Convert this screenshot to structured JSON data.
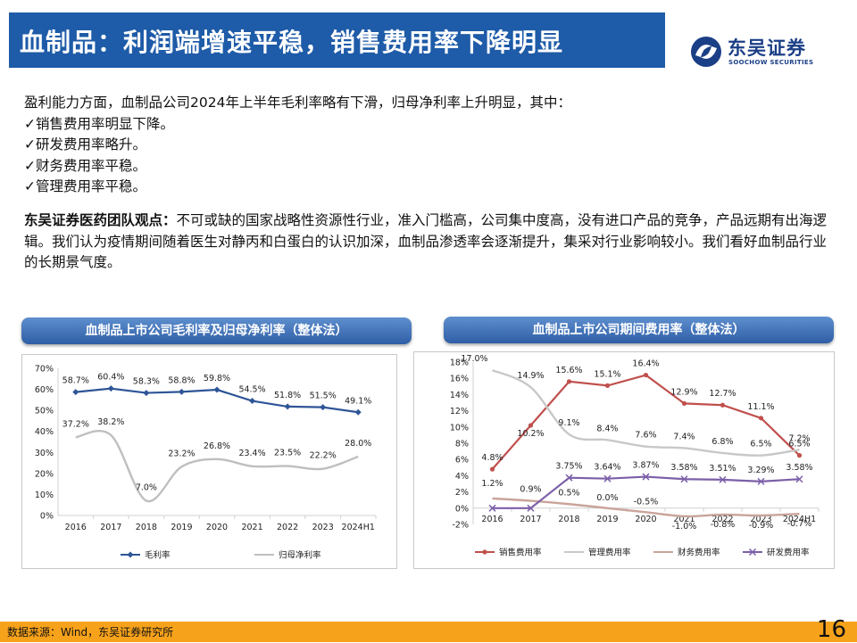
{
  "header": {
    "title": "血制品：利润端增速平稳，销售费用率下降明显"
  },
  "logo": {
    "cn": "东吴证券",
    "en": "SOOCHOW SECURITIES"
  },
  "intro": {
    "lead": "盈利能力方面，血制品公司2024年上半年毛利率略有下滑，归母净利率上升明显，其中：",
    "points": [
      "✓销售费用率明显下降。",
      "✓研发费用率略升。",
      "✓财务费用率平稳。",
      "✓管理费用率平稳。"
    ]
  },
  "viewpoint": {
    "heading": "东吴证券医药团队观点：",
    "body": "不可或缺的国家战略性资源性行业，准入门槛高，公司集中度高，没有进口产品的竞争，产品远期有出海逻辑。我们认为疫情期间随着医生对静丙和白蛋白的认识加深，血制品渗透率会逐渐提升，集采对行业影响较小。我们看好血制品行业的长期景气度。"
  },
  "chart_data": [
    {
      "type": "line",
      "title": "血制品上市公司毛利率及归母净利率（整体法）",
      "categories": [
        "2016",
        "2017",
        "2018",
        "2019",
        "2020",
        "2021",
        "2022",
        "2023",
        "2024H1"
      ],
      "ylim": [
        0,
        70
      ],
      "yticks": [
        "0%",
        "10%",
        "20%",
        "30%",
        "40%",
        "50%",
        "60%",
        "70%"
      ],
      "legend_position": "bottom",
      "series": [
        {
          "name": "毛利率",
          "color": "#2e5597",
          "marker": "diamond",
          "smooth": false,
          "values": [
            58.7,
            60.4,
            58.3,
            58.8,
            59.8,
            54.5,
            51.8,
            51.5,
            49.1
          ],
          "labels": [
            "58.7%",
            "60.4%",
            "58.3%",
            "58.8%",
            "59.8%",
            "54.5%",
            "51.8%",
            "51.5%",
            "49.1%"
          ]
        },
        {
          "name": "归母净利率",
          "color": "#bfbfbf",
          "marker": "none",
          "smooth": true,
          "values": [
            37.2,
            38.2,
            7.0,
            23.2,
            26.8,
            23.4,
            23.5,
            22.2,
            28.0
          ],
          "labels": [
            "37.2%",
            "38.2%",
            "7.0%",
            "23.2%",
            "26.8%",
            "23.4%",
            "23.5%",
            "22.2%",
            "28.0%"
          ]
        }
      ]
    },
    {
      "type": "line",
      "title": "血制品上市公司期间费用率（整体法）",
      "categories": [
        "2016",
        "2017",
        "2018",
        "2019",
        "2020",
        "2021",
        "2022",
        "2023",
        "2024H1"
      ],
      "ylim": [
        -2,
        18
      ],
      "yticks": [
        "-2%",
        "0%",
        "2%",
        "4%",
        "6%",
        "8%",
        "10%",
        "12%",
        "14%",
        "16%",
        "18%"
      ],
      "legend_position": "bottom",
      "series": [
        {
          "name": "销售费用率",
          "color": "#c0504d",
          "marker": "dot",
          "smooth": false,
          "values": [
            4.8,
            10.2,
            15.6,
            15.1,
            16.4,
            12.9,
            12.7,
            11.1,
            6.5
          ],
          "labels": [
            "4.8%",
            "10.2%",
            "15.6%",
            "15.1%",
            "16.4%",
            "12.9%",
            "12.7%",
            "11.1%",
            "6.5%"
          ]
        },
        {
          "name": "管理费用率",
          "color": "#c8c8c8",
          "marker": "none",
          "smooth": true,
          "values": [
            17.0,
            14.9,
            9.1,
            8.4,
            7.6,
            7.4,
            6.8,
            6.5,
            7.2
          ],
          "labels": [
            "17.0%",
            "14.9%",
            "9.1%",
            "8.4%",
            "7.6%",
            "7.4%",
            "6.8%",
            "6.5%",
            "7.2%"
          ]
        },
        {
          "name": "财务费用率",
          "color": "#c9a49a",
          "marker": "none",
          "smooth": true,
          "values": [
            1.2,
            0.9,
            0.5,
            0.0,
            -0.5,
            -1.0,
            -0.8,
            -0.9,
            -0.7
          ],
          "labels": [
            "1.2%",
            "0.9%",
            "0.5%",
            "0.0%",
            "-0.5%",
            "-1.0%",
            "-0.8%",
            "-0.9%",
            "-0.7%"
          ]
        },
        {
          "name": "研发费用率",
          "color": "#7b5fa8",
          "marker": "x",
          "smooth": false,
          "values": [
            0.0,
            0.0,
            3.75,
            3.64,
            3.87,
            3.58,
            3.51,
            3.29,
            3.58
          ],
          "labels": [
            "",
            "",
            "3.75%",
            "3.64%",
            "3.87%",
            "3.58%",
            "3.51%",
            "3.29%",
            "3.58%"
          ]
        }
      ]
    }
  ],
  "footer": {
    "source": "数据来源：Wind，东吴证券研究所",
    "page": "16"
  }
}
